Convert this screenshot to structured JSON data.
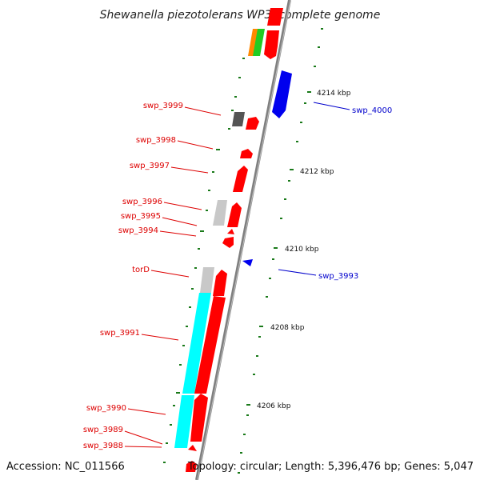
{
  "title": "Shewanella piezotolerans WP3, complete genome",
  "accession": "Accession: NC_011566",
  "topology": "Topology: circular; Length: 5,396,476 bp; Genes: 5,047",
  "colors": {
    "backbone": "#7f7f7f",
    "forward_gene": "#ff0000",
    "reverse_gene": "#0000ee",
    "tick": "#1a7a1a",
    "cds_grey": "#c8c8c8",
    "cds_dark": "#555555",
    "cds_cyan": "#00ffff",
    "cds_green": "#22cc22",
    "cds_orange": "#ff8800",
    "label_forward": "#dd0000",
    "label_reverse": "#0000cc"
  },
  "scale_labels": [
    "4214 kbp",
    "4212 kbp",
    "4210 kbp",
    "4208 kbp",
    "4206 kbp"
  ],
  "gene_labels": {
    "left": [
      "swp_3999",
      "swp_3998",
      "swp_3997",
      "swp_3996",
      "swp_3995",
      "swp_3994",
      "torD",
      "swp_3991",
      "swp_3990",
      "swp_3989",
      "swp_3988"
    ],
    "right": [
      "swp_4000",
      "swp_3993"
    ]
  }
}
